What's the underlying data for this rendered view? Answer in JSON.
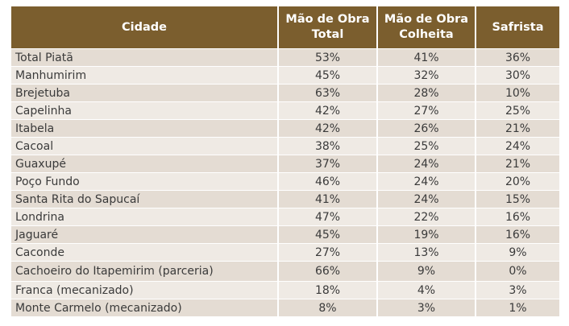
{
  "table": {
    "headers": [
      "Cidade",
      "Mão de Obra Total",
      "Mão de Obra Colheita",
      "Safrista"
    ],
    "rows": [
      {
        "cidade": "Total Piatã",
        "mo_total": "53%",
        "mo_colheita": "41%",
        "safrista": "36%"
      },
      {
        "cidade": "Manhumirim",
        "mo_total": "45%",
        "mo_colheita": "32%",
        "safrista": "30%"
      },
      {
        "cidade": "Brejetuba",
        "mo_total": "63%",
        "mo_colheita": "28%",
        "safrista": "10%"
      },
      {
        "cidade": "Capelinha",
        "mo_total": "42%",
        "mo_colheita": "27%",
        "safrista": "25%"
      },
      {
        "cidade": "Itabela",
        "mo_total": "42%",
        "mo_colheita": "26%",
        "safrista": "21%"
      },
      {
        "cidade": "Cacoal",
        "mo_total": "38%",
        "mo_colheita": "25%",
        "safrista": "24%"
      },
      {
        "cidade": "Guaxupé",
        "mo_total": "37%",
        "mo_colheita": "24%",
        "safrista": "21%"
      },
      {
        "cidade": "Poço Fundo",
        "mo_total": "46%",
        "mo_colheita": "24%",
        "safrista": "20%"
      },
      {
        "cidade": "Santa Rita do Sapucaí",
        "mo_total": "41%",
        "mo_colheita": "24%",
        "safrista": "15%"
      },
      {
        "cidade": "Londrina",
        "mo_total": "47%",
        "mo_colheita": "22%",
        "safrista": "16%"
      },
      {
        "cidade": "Jaguaré",
        "mo_total": "45%",
        "mo_colheita": "19%",
        "safrista": "16%"
      },
      {
        "cidade": "Caconde",
        "mo_total": "27%",
        "mo_colheita": "13%",
        "safrista": "9%"
      },
      {
        "cidade": "Cachoeiro do Itapemirim (parceria)",
        "mo_total": "66%",
        "mo_colheita": "9%",
        "safrista": "0%"
      },
      {
        "cidade": "Franca (mecanizado)",
        "mo_total": "18%",
        "mo_colheita": "4%",
        "safrista": "3%"
      },
      {
        "cidade": "Monte Carmelo (mecanizado)",
        "mo_total": "8%",
        "mo_colheita": "3%",
        "safrista": "1%"
      }
    ]
  },
  "colors": {
    "header_bg": "#7b5e2e",
    "row_odd": "#e4dcd3",
    "row_even": "#efeae4"
  }
}
